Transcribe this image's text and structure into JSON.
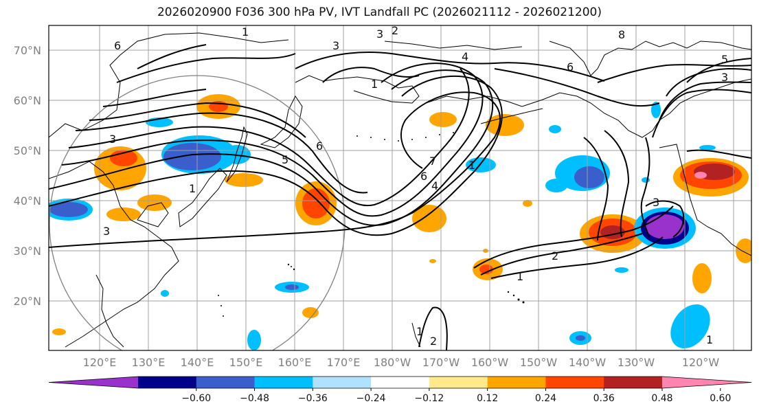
{
  "title": "2026020900 F036 300 hPa PV, IVT Landfall PC (2026021112 - 2026021200)",
  "lat_labels": [
    "70°N",
    "60°N",
    "50°N",
    "40°N",
    "30°N",
    "20°N"
  ],
  "lon_labels": [
    "120°E",
    "130°E",
    "140°E",
    "150°E",
    "160°E",
    "170°E",
    "180°W",
    "170°W",
    "160°W",
    "150°W",
    "140°W",
    "130°W",
    "120°W"
  ],
  "colorbar": {
    "ticks": [
      "−0.60",
      "−0.48",
      "−0.36",
      "−0.24",
      "−0.12",
      "0.12",
      "0.24",
      "0.36",
      "0.48",
      "0.60"
    ],
    "colors": [
      "#9932cc",
      "#00008b",
      "#3a5fcd",
      "#00bfff",
      "#b0e2ff",
      "#ffffff",
      "#ffe98a",
      "#ffa500",
      "#ff4500",
      "#b22222",
      "#ff85b0"
    ]
  },
  "contour_labels": [
    "1",
    "2",
    "3",
    "4",
    "5",
    "6",
    "7",
    "8"
  ]
}
